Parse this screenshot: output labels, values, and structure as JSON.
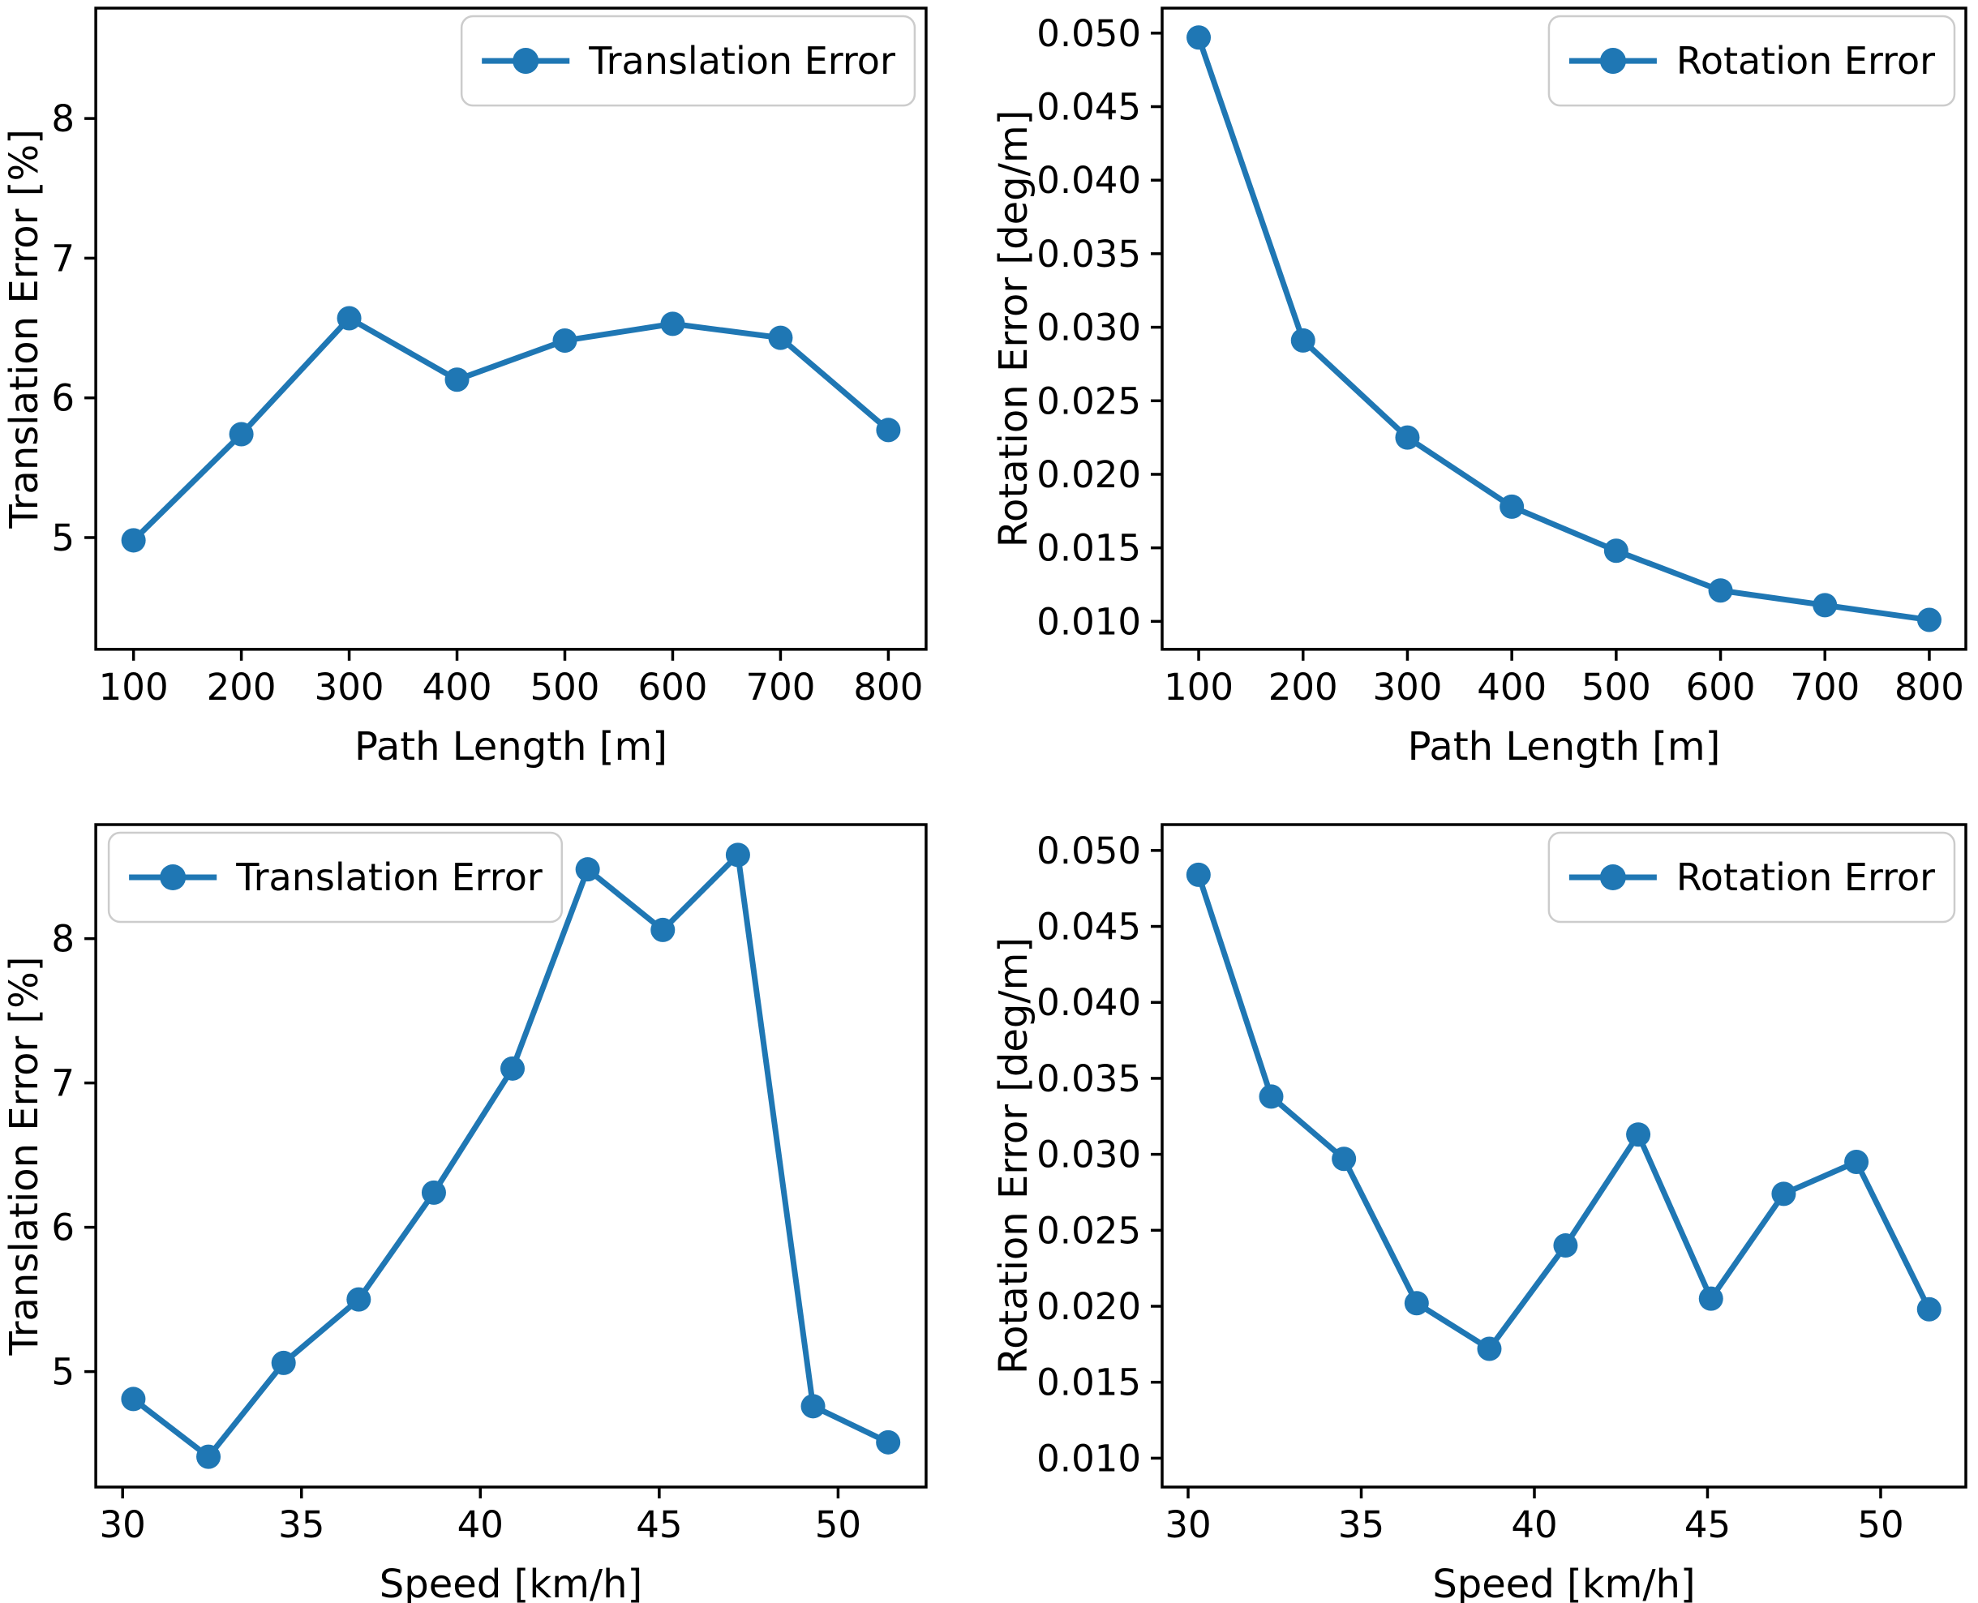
{
  "figure": {
    "background": "#ffffff",
    "accent_color": "#1f77b4",
    "spine_color": "#000000",
    "text_color": "#000000",
    "legend_border_color": "#cccccc",
    "legend_background": "#ffffff"
  },
  "chart_data": [
    {
      "type": "line",
      "title": "",
      "xlabel": "Path Length [m]",
      "ylabel": "Translation Error [%]",
      "grid": false,
      "legend": {
        "label": "Translation Error",
        "position": "upper right"
      },
      "x": [
        100,
        200,
        300,
        400,
        500,
        600,
        700,
        800
      ],
      "series": [
        {
          "name": "Translation Error",
          "values": [
            4.98,
            5.74,
            6.57,
            6.13,
            6.41,
            6.53,
            6.43,
            5.77
          ]
        }
      ],
      "xlim": [
        65,
        835
      ],
      "ylim": [
        4.2,
        8.79
      ],
      "xticks": [
        100,
        200,
        300,
        400,
        500,
        600,
        700,
        800
      ],
      "xtick_labels": [
        "100",
        "200",
        "300",
        "400",
        "500",
        "600",
        "700",
        "800"
      ],
      "yticks": [
        5,
        6,
        7,
        8
      ],
      "ytick_labels": [
        "5",
        "6",
        "7",
        "8"
      ]
    },
    {
      "type": "line",
      "title": "",
      "xlabel": "Path Length [m]",
      "ylabel": "Rotation Error [deg/m]",
      "grid": false,
      "legend": {
        "label": "Rotation Error",
        "position": "upper right"
      },
      "x": [
        100,
        200,
        300,
        400,
        500,
        600,
        700,
        800
      ],
      "series": [
        {
          "name": "Rotation Error",
          "values": [
            0.0497,
            0.0291,
            0.0225,
            0.0178,
            0.0148,
            0.0121,
            0.0111,
            0.0101
          ]
        }
      ],
      "xlim": [
        65,
        835
      ],
      "ylim": [
        0.0081,
        0.0517
      ],
      "xticks": [
        100,
        200,
        300,
        400,
        500,
        600,
        700,
        800
      ],
      "xtick_labels": [
        "100",
        "200",
        "300",
        "400",
        "500",
        "600",
        "700",
        "800"
      ],
      "yticks": [
        0.01,
        0.015,
        0.02,
        0.025,
        0.03,
        0.035,
        0.04,
        0.045,
        0.05
      ],
      "ytick_labels": [
        "0.010",
        "0.015",
        "0.020",
        "0.025",
        "0.030",
        "0.035",
        "0.040",
        "0.045",
        "0.050"
      ]
    },
    {
      "type": "line",
      "title": "",
      "xlabel": "Speed [km/h]",
      "ylabel": "Translation Error [%]",
      "grid": false,
      "legend": {
        "label": "Translation Error",
        "position": "upper left"
      },
      "x": [
        30.3,
        32.4,
        34.5,
        36.6,
        38.7,
        40.9,
        43.0,
        45.1,
        47.2,
        49.3,
        51.4
      ],
      "series": [
        {
          "name": "Translation Error",
          "values": [
            4.81,
            4.41,
            5.06,
            5.5,
            6.24,
            7.1,
            8.48,
            8.06,
            8.58,
            4.76,
            4.51
          ]
        }
      ],
      "xlim": [
        29.25,
        52.46
      ],
      "ylim": [
        4.2,
        8.79
      ],
      "xticks": [
        30,
        35,
        40,
        45,
        50
      ],
      "xtick_labels": [
        "30",
        "35",
        "40",
        "45",
        "50"
      ],
      "yticks": [
        5,
        6,
        7,
        8
      ],
      "ytick_labels": [
        "5",
        "6",
        "7",
        "8"
      ]
    },
    {
      "type": "line",
      "title": "",
      "xlabel": "Speed [km/h]",
      "ylabel": "Rotation Error [deg/m]",
      "grid": false,
      "legend": {
        "label": "Rotation Error",
        "position": "upper right"
      },
      "x": [
        30.3,
        32.4,
        34.5,
        36.6,
        38.7,
        40.9,
        43.0,
        45.1,
        47.2,
        49.3,
        51.4
      ],
      "series": [
        {
          "name": "Rotation Error",
          "values": [
            0.0484,
            0.0338,
            0.0297,
            0.0202,
            0.0172,
            0.024,
            0.0313,
            0.0205,
            0.0274,
            0.0295,
            0.0198
          ]
        }
      ],
      "xlim": [
        29.25,
        52.46
      ],
      "ylim": [
        0.0081,
        0.0517
      ],
      "xticks": [
        30,
        35,
        40,
        45,
        50
      ],
      "xtick_labels": [
        "30",
        "35",
        "40",
        "45",
        "50"
      ],
      "yticks": [
        0.01,
        0.015,
        0.02,
        0.025,
        0.03,
        0.035,
        0.04,
        0.045,
        0.05
      ],
      "ytick_labels": [
        "0.010",
        "0.015",
        "0.020",
        "0.025",
        "0.030",
        "0.035",
        "0.040",
        "0.045",
        "0.050"
      ]
    }
  ]
}
